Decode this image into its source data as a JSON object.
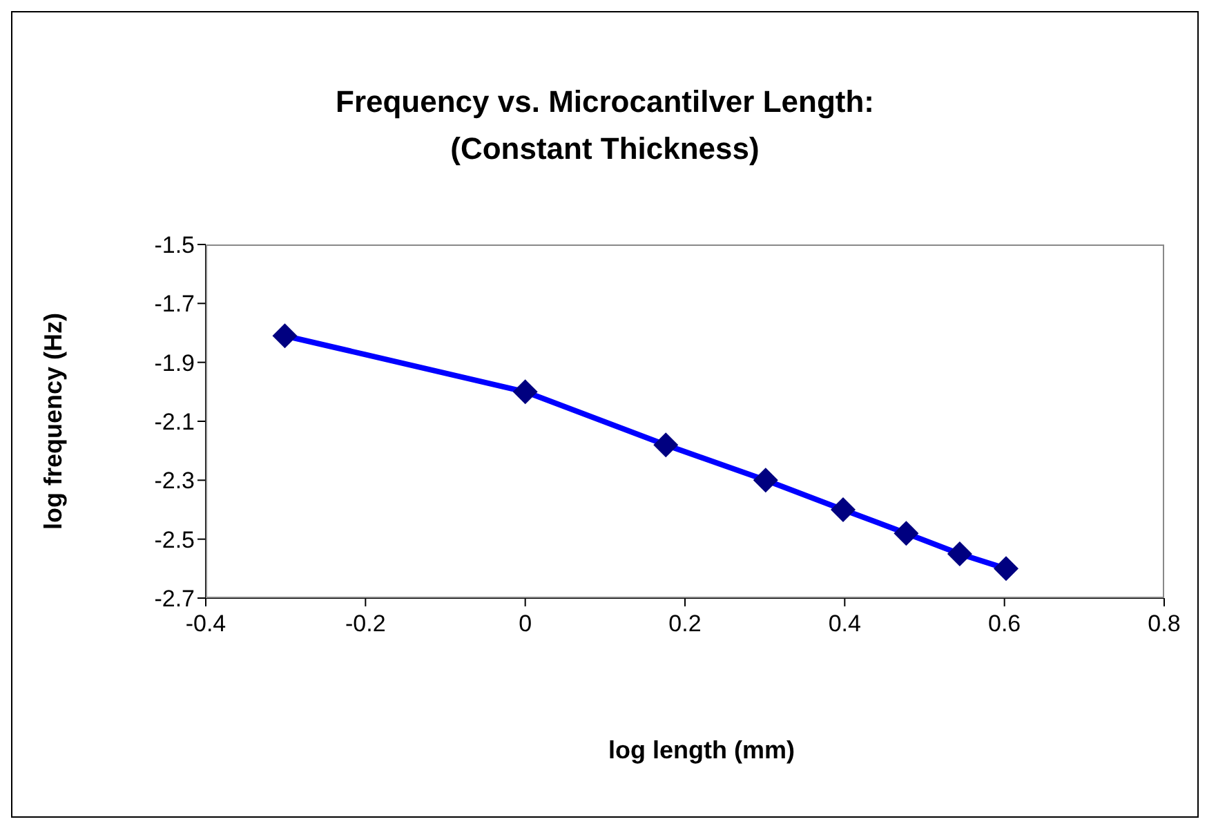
{
  "chart_data": {
    "type": "line",
    "title": "Frequency vs. Microcantilver Length:\n(Constant Thickness)",
    "xlabel": "log length (mm)",
    "ylabel": "log frequency (Hz)",
    "x": [
      -0.301,
      0,
      0.176,
      0.301,
      0.398,
      0.477,
      0.544,
      0.602
    ],
    "series": [
      {
        "color": "#0000ff",
        "colors": [
          "#000080",
          "#000080",
          "#000080",
          "#000080",
          "#000080",
          "#000080",
          "#000080",
          "#000080"
        ],
        "values": [
          -1.81,
          -2.0,
          -2.18,
          -2.3,
          -2.4,
          -2.48,
          -2.55,
          -2.6
        ]
      }
    ],
    "marker": "diamond",
    "line_style": "solid",
    "xlim": [
      -0.4,
      0.8
    ],
    "xticks": [
      -0.4,
      -0.2,
      0,
      0.2,
      0.4,
      0.6,
      0.8
    ],
    "ylim": [
      -2.7,
      -1.5
    ],
    "yticks": [
      -2.7,
      -2.5,
      -2.3,
      -2.1,
      -1.9,
      -1.7,
      -1.5
    ],
    "grid": false,
    "legend": false
  }
}
